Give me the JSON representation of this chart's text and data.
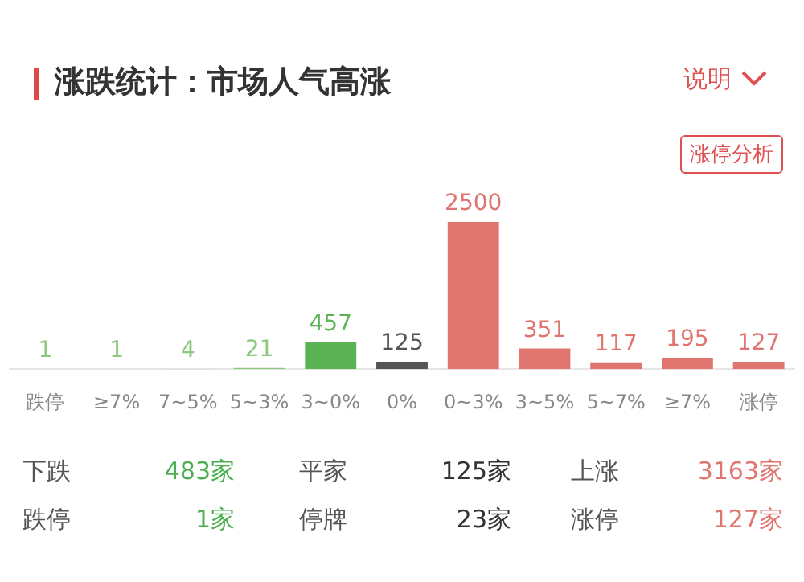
{
  "chart_data": {
    "type": "bar",
    "title": "涨跌统计：市场人气高涨",
    "categories": [
      "跌停",
      "≥7%",
      "7~5%",
      "5~3%",
      "3~0%",
      "0%",
      "0~3%",
      "3~5%",
      "5~7%",
      "≥7%",
      "涨停"
    ],
    "values": [
      1,
      1,
      4,
      21,
      457,
      125,
      2500,
      351,
      117,
      195,
      127
    ],
    "colors": [
      "#8cc97f",
      "#8cc97f",
      "#8cc97f",
      "#8cc97f",
      "#5cb356",
      "#555555",
      "#e07570",
      "#e07570",
      "#e07570",
      "#e07570",
      "#e07570"
    ],
    "data_labels": true,
    "grid": false,
    "legend": false,
    "annotations": [
      "说明",
      "涨停分析",
      "下跌",
      "483家",
      "平家",
      "125家",
      "上涨",
      "3163家",
      "跌停",
      "1家",
      "停牌",
      "23家",
      "涨停",
      "127家"
    ]
  }
}
